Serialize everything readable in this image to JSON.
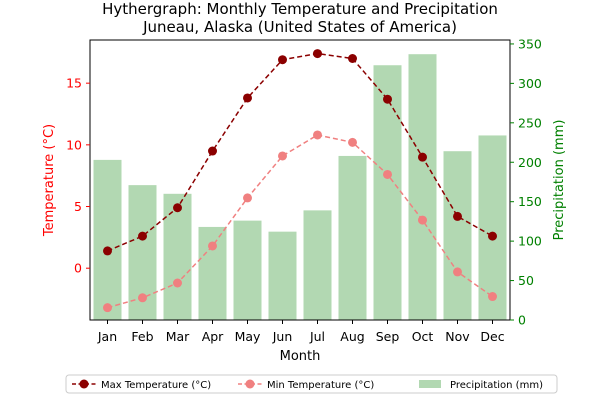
{
  "chart_data": {
    "type": "bar+line",
    "title_line1": "Hythergraph: Monthly Temperature and Precipitation",
    "title_line2": "Juneau, Alaska (United States of America)",
    "xlabel": "Month",
    "ylabel_left": "Temperature (°C)",
    "ylabel_right": "Precipitation (mm)",
    "categories": [
      "Jan",
      "Feb",
      "Mar",
      "Apr",
      "May",
      "Jun",
      "Jul",
      "Aug",
      "Sep",
      "Oct",
      "Nov",
      "Dec"
    ],
    "ylim_left": [
      -4.2,
      18.5
    ],
    "ylim_right": [
      0,
      355
    ],
    "yticks_left": [
      0,
      5,
      10,
      15
    ],
    "yticks_right": [
      0,
      50,
      100,
      150,
      200,
      250,
      300,
      350
    ],
    "series": [
      {
        "name": "Max Temperature (°C)",
        "kind": "line",
        "axis": "left",
        "color": "#8b0000",
        "linestyle": "dashed",
        "marker": "circle",
        "values": [
          1.4,
          2.6,
          4.9,
          9.5,
          13.8,
          16.9,
          17.4,
          17.0,
          13.7,
          9.0,
          4.2,
          2.6
        ]
      },
      {
        "name": "Min Temperature (°C)",
        "kind": "line",
        "axis": "left",
        "color": "#f08080",
        "linestyle": "dashed",
        "marker": "circle",
        "values": [
          -3.2,
          -2.4,
          -1.2,
          1.8,
          5.7,
          9.1,
          10.8,
          10.2,
          7.6,
          3.9,
          -0.3,
          -2.3
        ]
      },
      {
        "name": "Precipitation (mm)",
        "kind": "bar",
        "axis": "right",
        "color": "#b2d8b2",
        "values": [
          203,
          171,
          160,
          118,
          126,
          112,
          139,
          208,
          323,
          337,
          214,
          234
        ]
      }
    ],
    "colors": {
      "left_axis": "#ff0000",
      "right_axis": "#008000"
    },
    "grid": false,
    "legend_placement": "bottom-center"
  }
}
